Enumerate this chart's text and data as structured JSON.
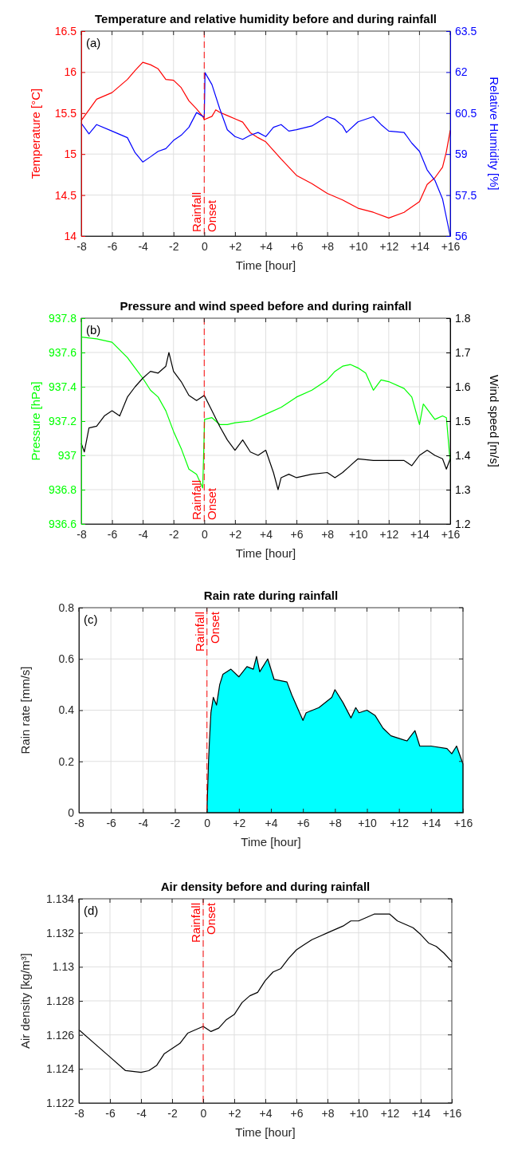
{
  "chart_data": [
    {
      "type": "line",
      "title": "Temperature and relative humidity before and during rainfall",
      "xlabel": "Time [hour]",
      "ylabel": "Temperature [°C]",
      "y2label": "Relative Humidity [%]",
      "xlim": [
        -8,
        16
      ],
      "xticks": [
        -8,
        -6,
        -4,
        -2,
        0,
        {
          "value": 2,
          "label": "+2"
        },
        {
          "value": 4,
          "label": "+4"
        },
        {
          "value": 6,
          "label": "+6"
        },
        {
          "value": 8,
          "label": "+8"
        },
        {
          "value": 10,
          "label": "+10"
        },
        {
          "value": 12,
          "label": "+12"
        },
        {
          "value": 14,
          "label": "+14"
        },
        {
          "value": 16,
          "label": "+16"
        }
      ],
      "ylim": [
        14,
        16.5
      ],
      "yticks": [
        14,
        14.5,
        15,
        15.5,
        16,
        16.5
      ],
      "y2lim": [
        56,
        63.5
      ],
      "y2ticks": [
        56,
        57.5,
        59,
        60.5,
        62,
        63.5
      ],
      "grid": true,
      "annotations": [
        "(a)"
      ],
      "ref_lines": [
        {
          "axis": "x",
          "value": 0,
          "label": "Rainfall Onset",
          "color": "#ff0000",
          "line_style": "dashed"
        }
      ],
      "series": [
        {
          "color": "#ff0000",
          "x": [
            -8,
            -7,
            -6,
            -5,
            -4.5,
            -4,
            -3.5,
            -3,
            -2.5,
            -2,
            -1.5,
            -1,
            -0.5,
            -0.1,
            0,
            0.5,
            0.75,
            1,
            1.5,
            2,
            2.5,
            3,
            3.5,
            4,
            5,
            6,
            7,
            8,
            9,
            10,
            11,
            12,
            13,
            14,
            14.5,
            15,
            15.5,
            15.75,
            16
          ],
          "values": [
            15.41,
            15.67,
            15.75,
            15.91,
            16.02,
            16.12,
            16.09,
            16.04,
            15.91,
            15.9,
            15.81,
            15.65,
            15.55,
            15.46,
            15.42,
            15.46,
            15.54,
            15.51,
            15.47,
            15.43,
            15.39,
            15.26,
            15.2,
            15.15,
            14.94,
            14.74,
            14.64,
            14.52,
            14.44,
            14.34,
            14.29,
            14.22,
            14.29,
            14.42,
            14.63,
            14.71,
            14.84,
            15.03,
            15.29
          ]
        },
        {
          "color": "#0000ff",
          "axis": "y2",
          "x": [
            -8,
            -7.5,
            -7,
            -6,
            -5,
            -4.5,
            -4,
            -3.5,
            -3,
            -2.5,
            -2,
            -1.5,
            -1,
            -0.5,
            0,
            0.05,
            0.5,
            1,
            1.5,
            2,
            2.5,
            3,
            3.5,
            4,
            4.5,
            5,
            5.5,
            6,
            7,
            8,
            8.5,
            9,
            9.25,
            10,
            11,
            11.5,
            12,
            13,
            13.5,
            14,
            14.5,
            15,
            15.5,
            16
          ],
          "values": [
            60.13,
            59.74,
            60.08,
            59.84,
            59.6,
            59.05,
            58.71,
            58.9,
            59.1,
            59.2,
            59.5,
            59.69,
            59.98,
            60.52,
            60.35,
            61.98,
            61.54,
            60.67,
            59.89,
            59.64,
            59.54,
            59.69,
            59.79,
            59.64,
            59.98,
            60.08,
            59.84,
            59.89,
            60.03,
            60.37,
            60.27,
            60.03,
            59.79,
            60.18,
            60.37,
            60.08,
            59.84,
            59.79,
            59.4,
            59.1,
            58.42,
            58.04,
            57.36,
            56
          ]
        }
      ]
    },
    {
      "type": "line",
      "title": "Pressure and wind speed before and during rainfall",
      "xlabel": "Time [hour]",
      "ylabel": "Pressure [hPa]",
      "y2label": "Wind speed [m/s]",
      "xlim": [
        -8,
        16
      ],
      "xticks": [
        -8,
        -6,
        -4,
        -2,
        0,
        {
          "value": 2,
          "label": "+2"
        },
        {
          "value": 4,
          "label": "+4"
        },
        {
          "value": 6,
          "label": "+6"
        },
        {
          "value": 8,
          "label": "+8"
        },
        {
          "value": 10,
          "label": "+10"
        },
        {
          "value": 12,
          "label": "+12"
        },
        {
          "value": 14,
          "label": "+14"
        },
        {
          "value": 16,
          "label": "+16"
        }
      ],
      "ylim": [
        936.6,
        937.8
      ],
      "yticks": [
        936.6,
        936.8,
        937,
        937.2,
        937.4,
        937.6,
        937.8
      ],
      "y2lim": [
        1.2,
        1.8
      ],
      "y2ticks": [
        1.2,
        1.3,
        1.4,
        1.5,
        1.6,
        1.7,
        1.8
      ],
      "grid": true,
      "annotations": [
        "(b)"
      ],
      "ref_lines": [
        {
          "axis": "x",
          "value": 0,
          "label": "Rainfall Onset",
          "color": "#ff0000",
          "line_style": "dashed"
        }
      ],
      "series": [
        {
          "color": "#00ff00",
          "x": [
            -8,
            -7,
            -6,
            -5,
            -4.5,
            -4,
            -3.5,
            -3,
            -2.5,
            -2,
            -1.5,
            -1,
            -0.5,
            -0.1,
            0.02,
            0.5,
            1,
            1.5,
            2,
            3,
            4,
            5,
            6,
            7,
            8,
            8.5,
            9,
            9.5,
            10,
            10.5,
            11,
            11.5,
            12,
            13,
            13.5,
            14,
            14.25,
            15,
            15.5,
            15.75,
            16
          ],
          "values": [
            937.69,
            937.68,
            937.66,
            937.57,
            937.51,
            937.45,
            937.38,
            937.34,
            937.26,
            937.14,
            937.04,
            936.92,
            936.89,
            936.81,
            937.21,
            937.22,
            937.18,
            937.18,
            937.19,
            937.2,
            937.24,
            937.28,
            937.34,
            937.38,
            937.44,
            937.49,
            937.52,
            937.53,
            937.51,
            937.48,
            937.38,
            937.44,
            937.43,
            937.39,
            937.34,
            937.18,
            937.3,
            937.21,
            937.23,
            937.22,
            936.96
          ]
        },
        {
          "color": "#000000",
          "axis": "y2",
          "x": [
            -8,
            -7.8,
            -7.5,
            -7,
            -6.5,
            -6,
            -5.5,
            -5,
            -4.5,
            -4,
            -3.5,
            -3,
            -2.5,
            -2.3,
            -2,
            -1.5,
            -1,
            -0.5,
            0,
            0.5,
            1,
            1.5,
            2,
            2.5,
            3,
            3.5,
            4,
            4.5,
            4.8,
            5,
            5.5,
            6,
            7,
            8,
            8.5,
            9,
            9.5,
            10,
            11,
            12,
            13,
            13.5,
            14,
            14.5,
            15,
            15.5,
            15.75,
            16
          ],
          "values": [
            1.435,
            1.41,
            1.48,
            1.485,
            1.515,
            1.53,
            1.515,
            1.57,
            1.6,
            1.625,
            1.645,
            1.64,
            1.66,
            1.7,
            1.645,
            1.615,
            1.575,
            1.56,
            1.575,
            1.53,
            1.485,
            1.445,
            1.415,
            1.445,
            1.41,
            1.4,
            1.415,
            1.35,
            1.3,
            1.335,
            1.345,
            1.335,
            1.345,
            1.35,
            1.335,
            1.35,
            1.37,
            1.39,
            1.385,
            1.385,
            1.385,
            1.37,
            1.4,
            1.415,
            1.4,
            1.39,
            1.36,
            1.39
          ]
        }
      ]
    },
    {
      "type": "area",
      "title": "Rain rate during rainfall",
      "xlabel": "Time [hour]",
      "ylabel": "Rain rate [mm/s]",
      "xlim": [
        -8,
        16
      ],
      "xticks": [
        -8,
        -6,
        -4,
        -2,
        0,
        {
          "value": 2,
          "label": "+2"
        },
        {
          "value": 4,
          "label": "+4"
        },
        {
          "value": 6,
          "label": "+6"
        },
        {
          "value": 8,
          "label": "+8"
        },
        {
          "value": 10,
          "label": "+10"
        },
        {
          "value": 12,
          "label": "+12"
        },
        {
          "value": 14,
          "label": "+14"
        },
        {
          "value": 16,
          "label": "+16"
        }
      ],
      "ylim": [
        0,
        0.8
      ],
      "yticks": [
        0,
        0.2,
        0.4,
        0.6,
        0.8
      ],
      "grid": true,
      "annotations": [
        "(c)"
      ],
      "ref_lines": [
        {
          "axis": "x",
          "value": 0,
          "label": "Rainfall Onset",
          "color": "#ff0000",
          "line_style": "dashed"
        }
      ],
      "series": [
        {
          "color": "#00ffff",
          "x": [
            0,
            0.1,
            0.15,
            0.25,
            0.4,
            0.6,
            0.8,
            1,
            1.5,
            2,
            2.5,
            2.9,
            3.1,
            3.3,
            3.8,
            4.2,
            5,
            5.3,
            6,
            6.2,
            7,
            7.8,
            8,
            8.5,
            9,
            9.3,
            9.5,
            10,
            10.5,
            11,
            11.5,
            12,
            12.5,
            13,
            13.3,
            14,
            15,
            15.3,
            15.6,
            16
          ],
          "values": [
            0,
            0.2,
            0.27,
            0.39,
            0.45,
            0.42,
            0.5,
            0.54,
            0.56,
            0.53,
            0.57,
            0.56,
            0.61,
            0.55,
            0.6,
            0.52,
            0.51,
            0.46,
            0.36,
            0.39,
            0.41,
            0.45,
            0.48,
            0.43,
            0.37,
            0.41,
            0.39,
            0.4,
            0.38,
            0.33,
            0.3,
            0.29,
            0.28,
            0.32,
            0.26,
            0.26,
            0.25,
            0.23,
            0.26,
            0.19
          ]
        }
      ]
    },
    {
      "type": "line",
      "title": "Air density before and during rainfall",
      "xlabel": "Time [hour]",
      "ylabel": "Air density [kg/m³]",
      "xlim": [
        -8,
        16
      ],
      "xticks": [
        -8,
        -6,
        -4,
        -2,
        0,
        {
          "value": 2,
          "label": "+2"
        },
        {
          "value": 4,
          "label": "+4"
        },
        {
          "value": 6,
          "label": "+6"
        },
        {
          "value": 8,
          "label": "+8"
        },
        {
          "value": 10,
          "label": "+10"
        },
        {
          "value": 12,
          "label": "+12"
        },
        {
          "value": 14,
          "label": "+14"
        },
        {
          "value": 16,
          "label": "+16"
        }
      ],
      "ylim": [
        1.122,
        1.134
      ],
      "yticks": [
        1.122,
        1.124,
        1.126,
        1.128,
        1.13,
        1.132,
        1.134
      ],
      "grid": true,
      "annotations": [
        "(d)"
      ],
      "ref_lines": [
        {
          "axis": "x",
          "value": 0,
          "label": "Rainfall Onset",
          "color": "#ff0000",
          "line_style": "dashed"
        }
      ],
      "series": [
        {
          "color": "#000000",
          "x": [
            -8,
            -7,
            -6,
            -5,
            -4,
            -3.5,
            -3,
            -2.5,
            -2,
            -1.5,
            -1,
            -0.5,
            0,
            0.5,
            1,
            1.5,
            2,
            2.5,
            3,
            3.5,
            4,
            4.5,
            5,
            5.5,
            6,
            6.5,
            7,
            7.5,
            8,
            8.5,
            9,
            9.5,
            10,
            10.5,
            11,
            11.5,
            12,
            12.5,
            13,
            13.5,
            14,
            14.5,
            15,
            15.5,
            16
          ],
          "values": [
            1.1263,
            1.1255,
            1.1247,
            1.1239,
            1.1238,
            1.1239,
            1.1242,
            1.1249,
            1.1252,
            1.1255,
            1.1261,
            1.1263,
            1.1265,
            1.1262,
            1.1264,
            1.1269,
            1.1272,
            1.1279,
            1.1283,
            1.1285,
            1.1292,
            1.1297,
            1.1299,
            1.1305,
            1.131,
            1.1313,
            1.1316,
            1.1318,
            1.132,
            1.1322,
            1.1324,
            1.1327,
            1.1327,
            1.1329,
            1.1331,
            1.1331,
            1.1331,
            1.1327,
            1.1325,
            1.1323,
            1.1319,
            1.1314,
            1.1312,
            1.1308,
            1.1303
          ]
        }
      ]
    }
  ]
}
